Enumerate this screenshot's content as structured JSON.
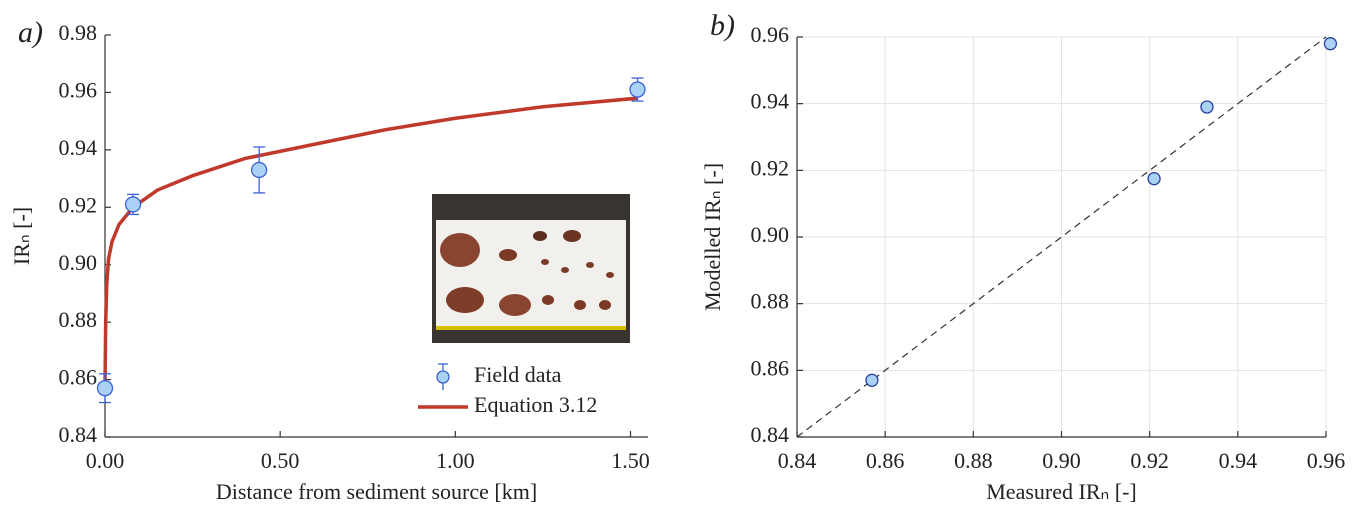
{
  "chart_data": [
    {
      "type": "errorbar",
      "panel_label": "a)",
      "x_label": "Distance from sediment source [km]",
      "y_label": "IRₙ [-]",
      "xlim": [
        0,
        1.55
      ],
      "ylim": [
        0.84,
        0.98
      ],
      "xticks": [
        {
          "value": 0,
          "label": "0.00"
        },
        {
          "value": 0.5,
          "label": "0.50"
        },
        {
          "value": 1,
          "label": "1.00"
        },
        {
          "value": 1.5,
          "label": "1.50"
        }
      ],
      "yticks": [
        0.84,
        0.86,
        0.88,
        {
          "value": 0.9,
          "label": "0.90"
        },
        0.92,
        0.94,
        0.96,
        0.98
      ],
      "grid": false,
      "legend": "lower right",
      "series": [
        {
          "name": "Field data",
          "type": "scatter",
          "color": "#3b63d6",
          "fill": "#a9d2f5",
          "x": [
            0.0,
            0.08,
            0.44,
            1.52
          ],
          "values": [
            0.857,
            0.921,
            0.933,
            0.961
          ],
          "errors": [
            0.005,
            0.0035,
            0.008,
            0.004
          ]
        },
        {
          "name": "Equation 3.12",
          "type": "line",
          "color": "#c0392b",
          "x": [
            0,
            0.002,
            0.005,
            0.01,
            0.02,
            0.04,
            0.08,
            0.15,
            0.25,
            0.4,
            0.6,
            0.8,
            1.0,
            1.25,
            1.52
          ],
          "values": [
            0.858,
            0.88,
            0.893,
            0.902,
            0.908,
            0.914,
            0.92,
            0.926,
            0.931,
            0.937,
            0.942,
            0.947,
            0.951,
            0.955,
            0.958
          ]
        }
      ]
    },
    {
      "type": "scatter",
      "panel_label": "b)",
      "x_label": "Measured IRₙ [-]",
      "y_label": "Modelled IRₙ [-]",
      "xlim": [
        0.84,
        0.96
      ],
      "ylim": [
        0.84,
        0.96
      ],
      "xticks": [
        0.84,
        0.86,
        0.88,
        {
          "value": 0.9,
          "label": "0.90"
        },
        0.92,
        0.94,
        0.96
      ],
      "yticks": [
        0.84,
        0.86,
        0.88,
        {
          "value": 0.9,
          "label": "0.90"
        },
        0.92,
        0.94,
        0.96
      ],
      "grid": true,
      "identity_line": true,
      "series": [
        {
          "type": "scatter",
          "color": "#2a3f9e",
          "fill": "#a9d2f5",
          "x": [
            0.857,
            0.921,
            0.933,
            0.961
          ],
          "values": [
            0.857,
            0.9175,
            0.939,
            0.958
          ]
        }
      ]
    }
  ]
}
